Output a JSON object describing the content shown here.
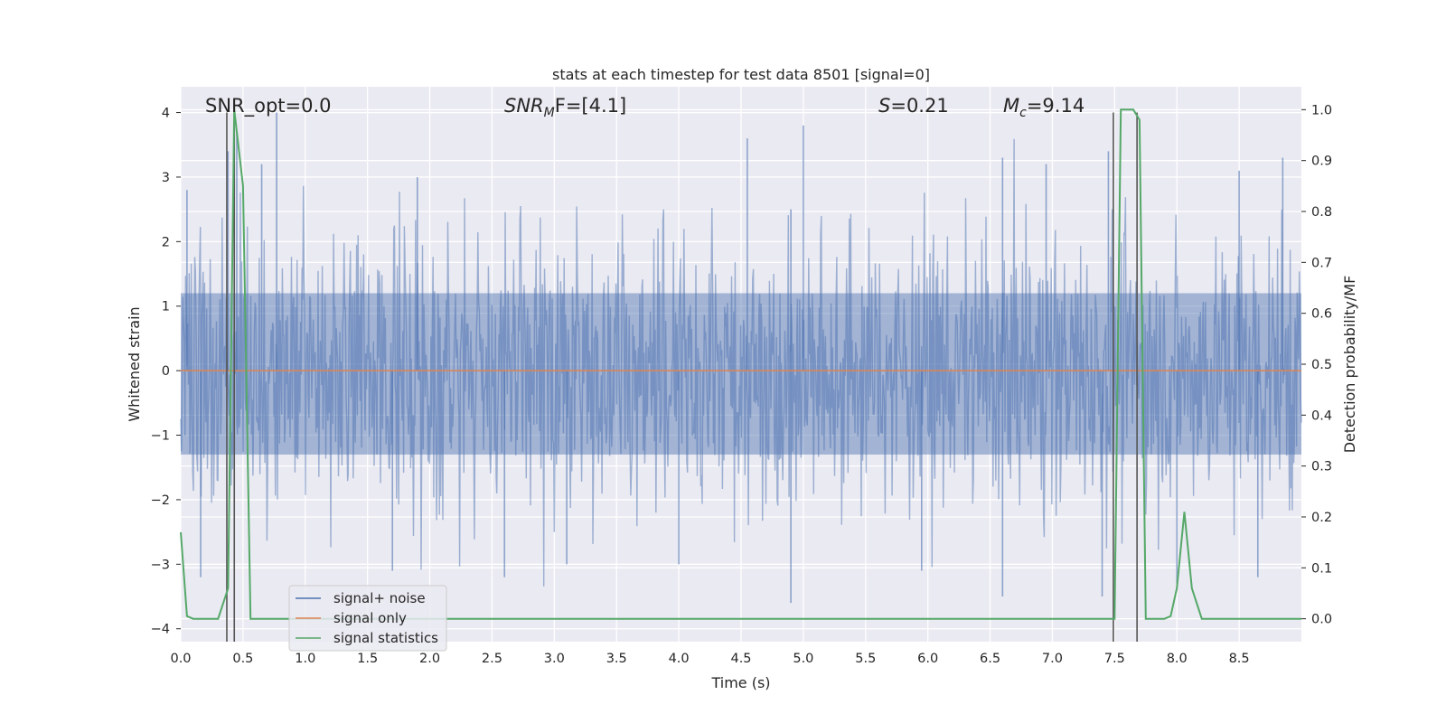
{
  "chart_data": {
    "type": "line",
    "title": "stats at each timestep for test data 8501 [signal=0]",
    "xlabel": "Time (s)",
    "ylabel_left": "Whitened strain",
    "ylabel_right": "Detection probability/MF",
    "xlim": [
      0.0,
      9.0
    ],
    "ylim_left": [
      -4.2,
      4.4
    ],
    "ylim_right": [
      -0.045,
      1.045
    ],
    "xticks": [
      "0.0",
      "0.5",
      "1.0",
      "1.5",
      "2.0",
      "2.5",
      "3.0",
      "3.5",
      "4.0",
      "4.5",
      "5.0",
      "5.5",
      "6.0",
      "6.5",
      "7.0",
      "7.5",
      "8.0",
      "8.5"
    ],
    "yticks_left": [
      "−4",
      "−3",
      "−2",
      "−1",
      "0",
      "1",
      "2",
      "3",
      "4"
    ],
    "yticks_right": [
      "0.0",
      "0.1",
      "0.2",
      "0.3",
      "0.4",
      "0.5",
      "0.6",
      "0.7",
      "0.8",
      "0.9",
      "1.0"
    ],
    "grid": true,
    "legend_position": "lower-left",
    "annotations": {
      "snr_opt": "SNR_opt=0.0",
      "snr_mf_sym": "SNR",
      "snr_mf_sub": "M",
      "snr_mf_rest": "F=[4.1]",
      "s_sym": "S",
      "s_rest": "=0.21",
      "mc_sym": "M",
      "mc_sub": "c",
      "mc_rest": "=9.14"
    },
    "series": [
      {
        "name": "signal+ noise",
        "color": "#4c72b0",
        "axis": "left",
        "style": "dense noise, approx. N(0,1) whitened strain, range about -3.6 to 4.0",
        "envelope_peaks": {
          "x": [
            0.05,
            0.38,
            0.45,
            0.65,
            0.77,
            1.9,
            4.55,
            4.9,
            5.0,
            6.6,
            6.95,
            7.45,
            8.5,
            8.85
          ],
          "y": [
            2.8,
            3.4,
            3.7,
            3.2,
            4.0,
            3.0,
            3.6,
            2.5,
            3.8,
            3.3,
            3.2,
            3.4,
            3.1,
            3.3
          ]
        },
        "trough_peaks": {
          "x": [
            0.16,
            1.7,
            2.6,
            3.1,
            4.0,
            4.9,
            5.95,
            6.6,
            7.4,
            8.0,
            8.65
          ],
          "y": [
            -3.2,
            -3.1,
            -3.2,
            -3.0,
            -3.0,
            -3.6,
            -3.1,
            -3.5,
            -3.5,
            -3.3,
            -3.2
          ]
        }
      },
      {
        "name": "signal only",
        "color": "#dd8452",
        "axis": "left",
        "x": [
          0.0,
          9.0
        ],
        "y": [
          0.0,
          0.0
        ]
      },
      {
        "name": "signal statistics",
        "color": "#55a868",
        "axis": "right",
        "x": [
          0.0,
          0.05,
          0.1,
          0.3,
          0.38,
          0.43,
          0.5,
          0.56,
          0.7,
          7.45,
          7.5,
          7.55,
          7.65,
          7.7,
          7.75,
          7.9,
          7.95,
          8.0,
          8.06,
          8.12,
          8.2,
          9.0
        ],
        "y": [
          0.17,
          0.005,
          0.0,
          0.0,
          0.06,
          1.0,
          0.85,
          0.0,
          0.0,
          0.0,
          0.0,
          1.0,
          1.0,
          0.98,
          0.0,
          0.0,
          0.005,
          0.06,
          0.21,
          0.06,
          0.0,
          0.0
        ]
      }
    ],
    "markers": {
      "color": "#555555",
      "x": [
        0.37,
        0.43,
        7.49,
        7.68
      ],
      "y_top": 4.0
    }
  }
}
